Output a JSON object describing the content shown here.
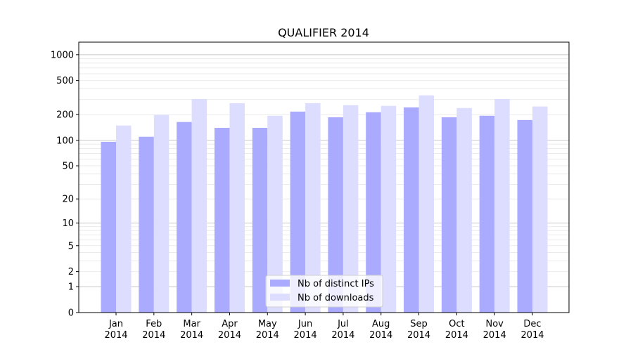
{
  "chart_data": {
    "type": "bar",
    "title": "QUALIFIER 2014",
    "xlabel": "",
    "ylabel": "",
    "yscale": "log10(1+y)",
    "ylim": [
      0,
      1400
    ],
    "yticks": [
      0,
      1,
      2,
      5,
      10,
      20,
      50,
      100,
      200,
      500,
      1000
    ],
    "grid": true,
    "legend_position": "bottom-center",
    "categories": [
      "Jan\n2014",
      "Feb\n2014",
      "Mar\n2014",
      "Apr\n2014",
      "May\n2014",
      "Jun\n2014",
      "Jul\n2014",
      "Aug\n2014",
      "Sep\n2014",
      "Oct\n2014",
      "Nov\n2014",
      "Dec\n2014"
    ],
    "series": [
      {
        "name": "Nb of distinct IPs",
        "color": "#aaaaff",
        "values": [
          96,
          110,
          164,
          140,
          140,
          217,
          186,
          213,
          243,
          186,
          194,
          173
        ]
      },
      {
        "name": "Nb of downloads",
        "color": "#ddddff",
        "values": [
          149,
          198,
          305,
          272,
          194,
          272,
          258,
          253,
          336,
          239,
          305,
          249
        ]
      }
    ]
  }
}
